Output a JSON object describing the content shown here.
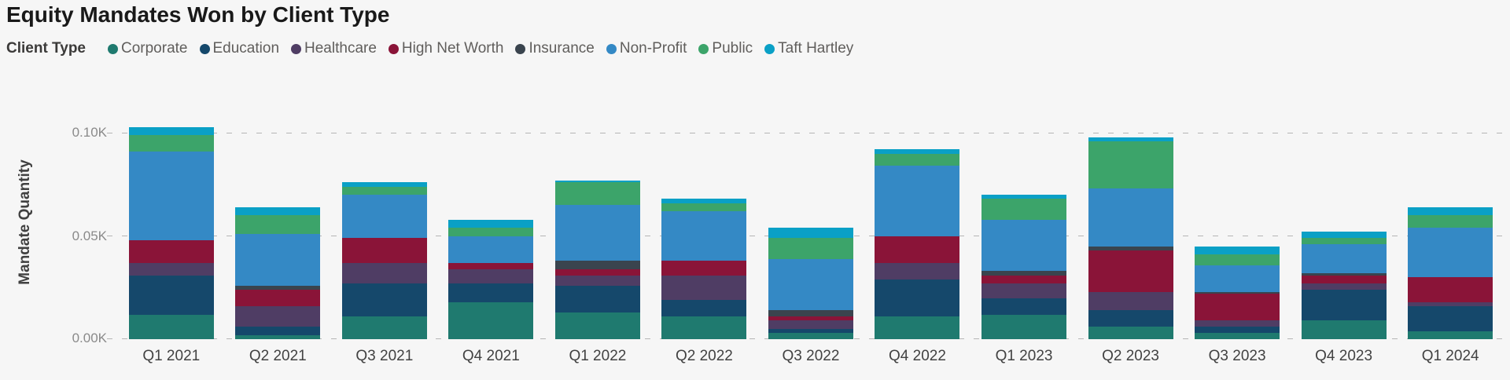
{
  "header": {
    "title": "Equity Mandates Won by Client Type"
  },
  "legend": {
    "title": "Client Type"
  },
  "y_axis": {
    "title": "Mandate Quantity",
    "ticks": [
      "0.00K",
      "0.05K",
      "0.10K"
    ]
  },
  "chart_data": {
    "type": "bar",
    "stacked": true,
    "title": "Equity Mandates Won by Client Type",
    "xlabel": "",
    "ylabel": "Mandate Quantity",
    "legend_title": "Client Type",
    "legend_position": "top",
    "grid": "horizontal-dashed",
    "y_tick_labels": [
      "0.00K",
      "0.05K",
      "0.10K"
    ],
    "y_tick_values": [
      0,
      50,
      100
    ],
    "ylim": [
      0,
      115
    ],
    "unit_note": "values are mandate counts, axis shown in thousands (K)",
    "categories": [
      "Q1 2021",
      "Q2 2021",
      "Q3 2021",
      "Q4 2021",
      "Q1 2022",
      "Q2 2022",
      "Q3 2022",
      "Q4 2022",
      "Q1 2023",
      "Q2 2023",
      "Q3 2023",
      "Q4 2023",
      "Q1 2024"
    ],
    "series": [
      {
        "name": "Corporate",
        "color": "#1f7a6f",
        "values": [
          12,
          2,
          11,
          18,
          13,
          11,
          3,
          11,
          12,
          6,
          3,
          9,
          4
        ]
      },
      {
        "name": "Education",
        "color": "#15486b",
        "values": [
          19,
          4,
          16,
          9,
          13,
          8,
          2,
          18,
          8,
          8,
          3,
          15,
          12
        ]
      },
      {
        "name": "Healthcare",
        "color": "#4f3d64",
        "values": [
          6,
          10,
          10,
          7,
          5,
          12,
          4,
          8,
          7,
          9,
          3,
          3,
          2
        ]
      },
      {
        "name": "High Net Worth",
        "color": "#8a1438",
        "values": [
          11,
          8,
          12,
          3,
          3,
          7,
          2,
          13,
          4,
          20,
          13,
          4,
          12
        ]
      },
      {
        "name": "Insurance",
        "color": "#3a444e",
        "values": [
          0,
          2,
          0,
          0,
          4,
          0,
          3,
          0,
          2,
          2,
          1,
          1,
          0
        ]
      },
      {
        "name": "Non-Profit",
        "color": "#3489c5",
        "values": [
          43,
          25,
          21,
          13,
          27,
          24,
          25,
          34,
          25,
          28,
          13,
          14,
          24
        ]
      },
      {
        "name": "Public",
        "color": "#3ca46a",
        "values": [
          8,
          9,
          4,
          4,
          11,
          4,
          10,
          6,
          10,
          23,
          5,
          3,
          6
        ]
      },
      {
        "name": "Taft Hartley",
        "color": "#0aa0c6",
        "values": [
          4,
          4,
          2,
          4,
          1,
          2,
          5,
          2,
          2,
          2,
          4,
          3,
          4
        ]
      }
    ]
  }
}
